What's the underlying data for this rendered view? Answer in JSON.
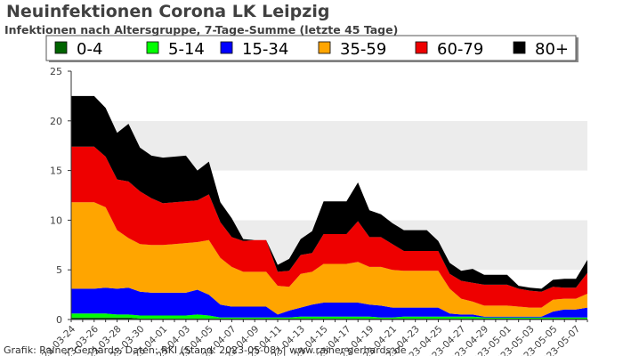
{
  "chart_data": {
    "type": "area",
    "stacked": true,
    "title": "Neuinfektionen Corona LK Leipzig",
    "subtitle": "Infektionen nach Altersgruppe, 7-Tage-Summe (letzte 45 Tage)",
    "footer": "Grafik: Rainer Gerhards, Daten: RKI (Stand: 2023-05-08) | www.rainer-gerhards.de",
    "xlabel": "",
    "ylabel": "",
    "ylim": [
      0,
      25
    ],
    "yticks": [
      0,
      5,
      10,
      15,
      20,
      25
    ],
    "grid": "horizontal bands",
    "legend_position": "top",
    "x": [
      "2023-03-24",
      "2023-03-25",
      "2023-03-26",
      "2023-03-27",
      "2023-03-28",
      "2023-03-29",
      "2023-03-30",
      "2023-03-31",
      "2023-04-01",
      "2023-04-02",
      "2023-04-03",
      "2023-04-04",
      "2023-04-05",
      "2023-04-06",
      "2023-04-07",
      "2023-04-08",
      "2023-04-09",
      "2023-04-10",
      "2023-04-11",
      "2023-04-12",
      "2023-04-13",
      "2023-04-14",
      "2023-04-15",
      "2023-04-16",
      "2023-04-17",
      "2023-04-18",
      "2023-04-19",
      "2023-04-20",
      "2023-04-21",
      "2023-04-22",
      "2023-04-23",
      "2023-04-24",
      "2023-04-25",
      "2023-04-26",
      "2023-04-27",
      "2023-04-28",
      "2023-04-29",
      "2023-04-30",
      "2023-05-01",
      "2023-05-02",
      "2023-05-03",
      "2023-05-04",
      "2023-05-05",
      "2023-05-06",
      "2023-05-07",
      "2023-05-08"
    ],
    "xtick_labels": [
      "2023-03-24",
      "2023-03-26",
      "2023-03-28",
      "2023-03-30",
      "2023-04-01",
      "2023-04-03",
      "2023-04-05",
      "2023-04-07",
      "2023-04-09",
      "2023-04-11",
      "2023-04-13",
      "2023-04-15",
      "2023-04-17",
      "2023-04-19",
      "2023-04-21",
      "2023-04-23",
      "2023-04-25",
      "2023-04-27",
      "2023-04-29",
      "2023-05-01",
      "2023-05-03",
      "2023-05-05",
      "2023-05-07"
    ],
    "series": [
      {
        "name": "0-4",
        "color": "#006400",
        "values": [
          0.2,
          0.2,
          0.2,
          0.2,
          0.2,
          0.2,
          0.1,
          0.1,
          0.1,
          0.1,
          0.1,
          0.1,
          0.1,
          0.1,
          0.1,
          0.1,
          0.1,
          0.1,
          0.1,
          0.1,
          0.1,
          0.1,
          0.1,
          0.1,
          0.1,
          0.1,
          0.1,
          0.1,
          0.1,
          0.1,
          0.1,
          0.1,
          0.1,
          0.1,
          0.1,
          0.1,
          0.1,
          0.1,
          0.1,
          0.1,
          0.1,
          0.1,
          0.1,
          0.1,
          0.1,
          0.1
        ]
      },
      {
        "name": "5-14",
        "color": "#00ff00",
        "values": [
          0.4,
          0.4,
          0.4,
          0.4,
          0.3,
          0.3,
          0.3,
          0.3,
          0.3,
          0.3,
          0.3,
          0.4,
          0.3,
          0.1,
          0.1,
          0.1,
          0.1,
          0.1,
          0.1,
          0.1,
          0.2,
          0.2,
          0.2,
          0.2,
          0.2,
          0.2,
          0.2,
          0.1,
          0.1,
          0.2,
          0.2,
          0.2,
          0.2,
          0.2,
          0.2,
          0.2,
          0.1,
          0.1,
          0.1,
          0.1,
          0.1,
          0.1,
          0.1,
          0.1,
          0.1,
          0.1
        ]
      },
      {
        "name": "15-34",
        "color": "#0000ff",
        "values": [
          2.5,
          2.5,
          2.5,
          2.6,
          2.6,
          2.7,
          2.4,
          2.3,
          2.3,
          2.3,
          2.3,
          2.5,
          2.1,
          1.3,
          1.1,
          1.1,
          1.1,
          1.1,
          0.3,
          0.7,
          0.9,
          1.2,
          1.4,
          1.4,
          1.4,
          1.4,
          1.2,
          1.2,
          1.0,
          0.9,
          0.9,
          0.9,
          0.9,
          0.3,
          0.2,
          0.2,
          0.1,
          0.1,
          0.1,
          0.1,
          0.1,
          0.1,
          0.6,
          0.8,
          0.8,
          1.0
        ]
      },
      {
        "name": "35-59",
        "color": "#ffa500",
        "values": [
          8.7,
          8.7,
          8.7,
          8.1,
          5.9,
          5.0,
          4.8,
          4.8,
          4.8,
          4.9,
          5.0,
          4.8,
          5.5,
          4.7,
          4.0,
          3.5,
          3.5,
          3.5,
          2.9,
          2.4,
          3.4,
          3.3,
          3.9,
          3.9,
          3.9,
          4.1,
          3.8,
          3.9,
          3.8,
          3.7,
          3.7,
          3.7,
          3.7,
          2.5,
          1.6,
          1.3,
          1.1,
          1.1,
          1.1,
          1.0,
          0.9,
          0.9,
          1.2,
          1.1,
          1.1,
          1.4
        ]
      },
      {
        "name": "60-79",
        "color": "#ee0000",
        "values": [
          5.6,
          5.6,
          5.6,
          5.1,
          5.1,
          5.7,
          5.3,
          4.7,
          4.2,
          4.2,
          4.2,
          4.2,
          4.6,
          3.6,
          3.0,
          3.1,
          3.2,
          3.2,
          1.4,
          1.6,
          1.9,
          1.9,
          3.0,
          3.0,
          3.0,
          4.1,
          3.0,
          3.0,
          2.6,
          2.0,
          2.0,
          2.0,
          2.0,
          1.5,
          1.8,
          1.9,
          2.1,
          2.1,
          2.1,
          1.8,
          1.7,
          1.6,
          1.3,
          1.1,
          1.1,
          2.1
        ]
      },
      {
        "name": "80+",
        "color": "#000000",
        "values": [
          5.1,
          5.1,
          5.1,
          4.9,
          4.7,
          5.8,
          4.4,
          4.3,
          4.6,
          4.6,
          4.6,
          3.0,
          3.3,
          2.0,
          1.9,
          0.2,
          0.0,
          0.0,
          0.7,
          1.2,
          1.6,
          2.2,
          3.3,
          3.3,
          3.3,
          3.9,
          2.7,
          2.3,
          2.1,
          2.1,
          2.1,
          2.1,
          1.0,
          1.1,
          1.0,
          1.4,
          1.0,
          1.0,
          1.0,
          0.3,
          0.3,
          0.3,
          0.7,
          0.9,
          0.9,
          1.3
        ]
      }
    ]
  }
}
